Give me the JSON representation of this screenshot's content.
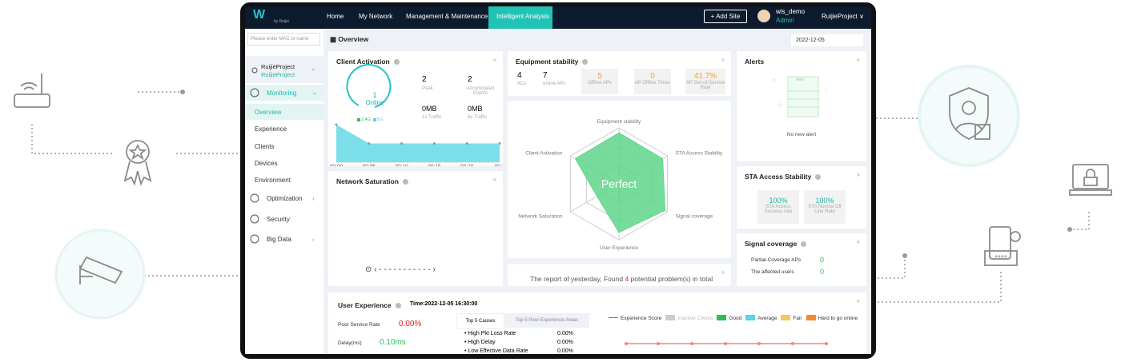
{
  "logo": {
    "by": "by Ruijie"
  },
  "nav": {
    "items": [
      "Home",
      "My Network",
      "Management & Maintenance",
      "Intelligent Analysis"
    ],
    "add_site": "+ Add Site",
    "user": "wis_demo",
    "role": "Admin",
    "project": "RuijieProject"
  },
  "sidebar": {
    "search_placeholder": "Please enter MAC or name",
    "project": "RuijieProject",
    "project_sub": "RuijieProject",
    "menu": [
      "Monitoring",
      "Overview",
      "Experience",
      "Clients",
      "Devices",
      "Environment",
      "Optimization",
      "Security",
      "Big Data"
    ]
  },
  "page": {
    "title": "Overview",
    "date": "2022-12-05"
  },
  "client_activation": {
    "title": "Client Activation",
    "online": "1",
    "online_label": "Online",
    "legend": [
      "2.4G",
      "5G"
    ],
    "stats": [
      {
        "value": "2",
        "label": "Peak"
      },
      {
        "value": "2",
        "label": "Accumulated Clients"
      },
      {
        "value": "0MB",
        "label": "1x Traffic"
      },
      {
        "value": "0MB",
        "label": "6x Traffic"
      }
    ],
    "trend": {
      "x": [
        "00:00",
        "00:05",
        "00:10",
        "00:15",
        "00:20",
        "00:2"
      ],
      "values": [
        2,
        1,
        1,
        1,
        1,
        1
      ],
      "ylim": [
        0,
        2
      ],
      "color": "#6ddbe8"
    }
  },
  "network_saturation": {
    "title": "Network Saturation"
  },
  "equipment_stability": {
    "title": "Equipment stability",
    "counts": [
      {
        "value": "4",
        "label": "ACs"
      },
      {
        "value": "7",
        "label": "online APs"
      }
    ],
    "boxes": [
      {
        "value": "5",
        "label": "Offline APs"
      },
      {
        "value": "0",
        "label": "AP Offline Times"
      },
      {
        "value": "41.7%",
        "label": "AP Out-of-Service Rate"
      }
    ]
  },
  "radar": {
    "center_label": "Perfect",
    "axes": [
      "Equipment stability",
      "STA Access Stability",
      "Signal coverage",
      "User Experience",
      "Network Saturation",
      "Client Activation"
    ],
    "values": [
      91,
      90,
      95,
      87,
      45,
      90
    ],
    "max": 100,
    "color": "#5fd68a"
  },
  "report": {
    "prefix": "The report of yesterday, Found",
    "count": "4",
    "suffix": "potential problem(s) in total"
  },
  "alerts": {
    "title": "Alerts",
    "empty": "No new alert",
    "icon_label": "Alert"
  },
  "sta": {
    "title": "STA Access Stability",
    "boxes": [
      {
        "value": "100%",
        "label": "STA Access Success rate"
      },
      {
        "value": "100%",
        "label": "STA Normal Off Line Rate"
      }
    ]
  },
  "signal": {
    "title": "Signal coverage",
    "rows": [
      {
        "label": "Partial-Coverage APs",
        "value": "0"
      },
      {
        "label": "The affected users",
        "value": "0"
      }
    ]
  },
  "user_experience": {
    "title": "User Experience",
    "time": "Time:2022-12-05 16:30:00",
    "metrics": [
      {
        "label": "Poor Service Rate",
        "value": "0.00%"
      },
      {
        "label": "Delay(ms)",
        "value": "0.10ms"
      }
    ],
    "tabs": [
      "Top 5 Causes",
      "Top 5 Poor-Experience Areas"
    ],
    "causes": [
      {
        "label": "High Pkt Loss Rate",
        "value": "0.00%"
      },
      {
        "label": "High Delay",
        "value": "0.00%"
      },
      {
        "label": "Low Effective Data Rate",
        "value": "0.00%"
      }
    ],
    "legend": [
      {
        "name": "Experience Score",
        "color": "#e84c3d"
      },
      {
        "name": "Inactive Clients",
        "color": "#cccccc"
      },
      {
        "name": "Good",
        "color": "#2bbf5a"
      },
      {
        "name": "Average",
        "color": "#5bd3e8"
      },
      {
        "name": "Fair",
        "color": "#f5c85c"
      },
      {
        "name": "Hard to go online",
        "color": "#f58a2c"
      }
    ]
  }
}
